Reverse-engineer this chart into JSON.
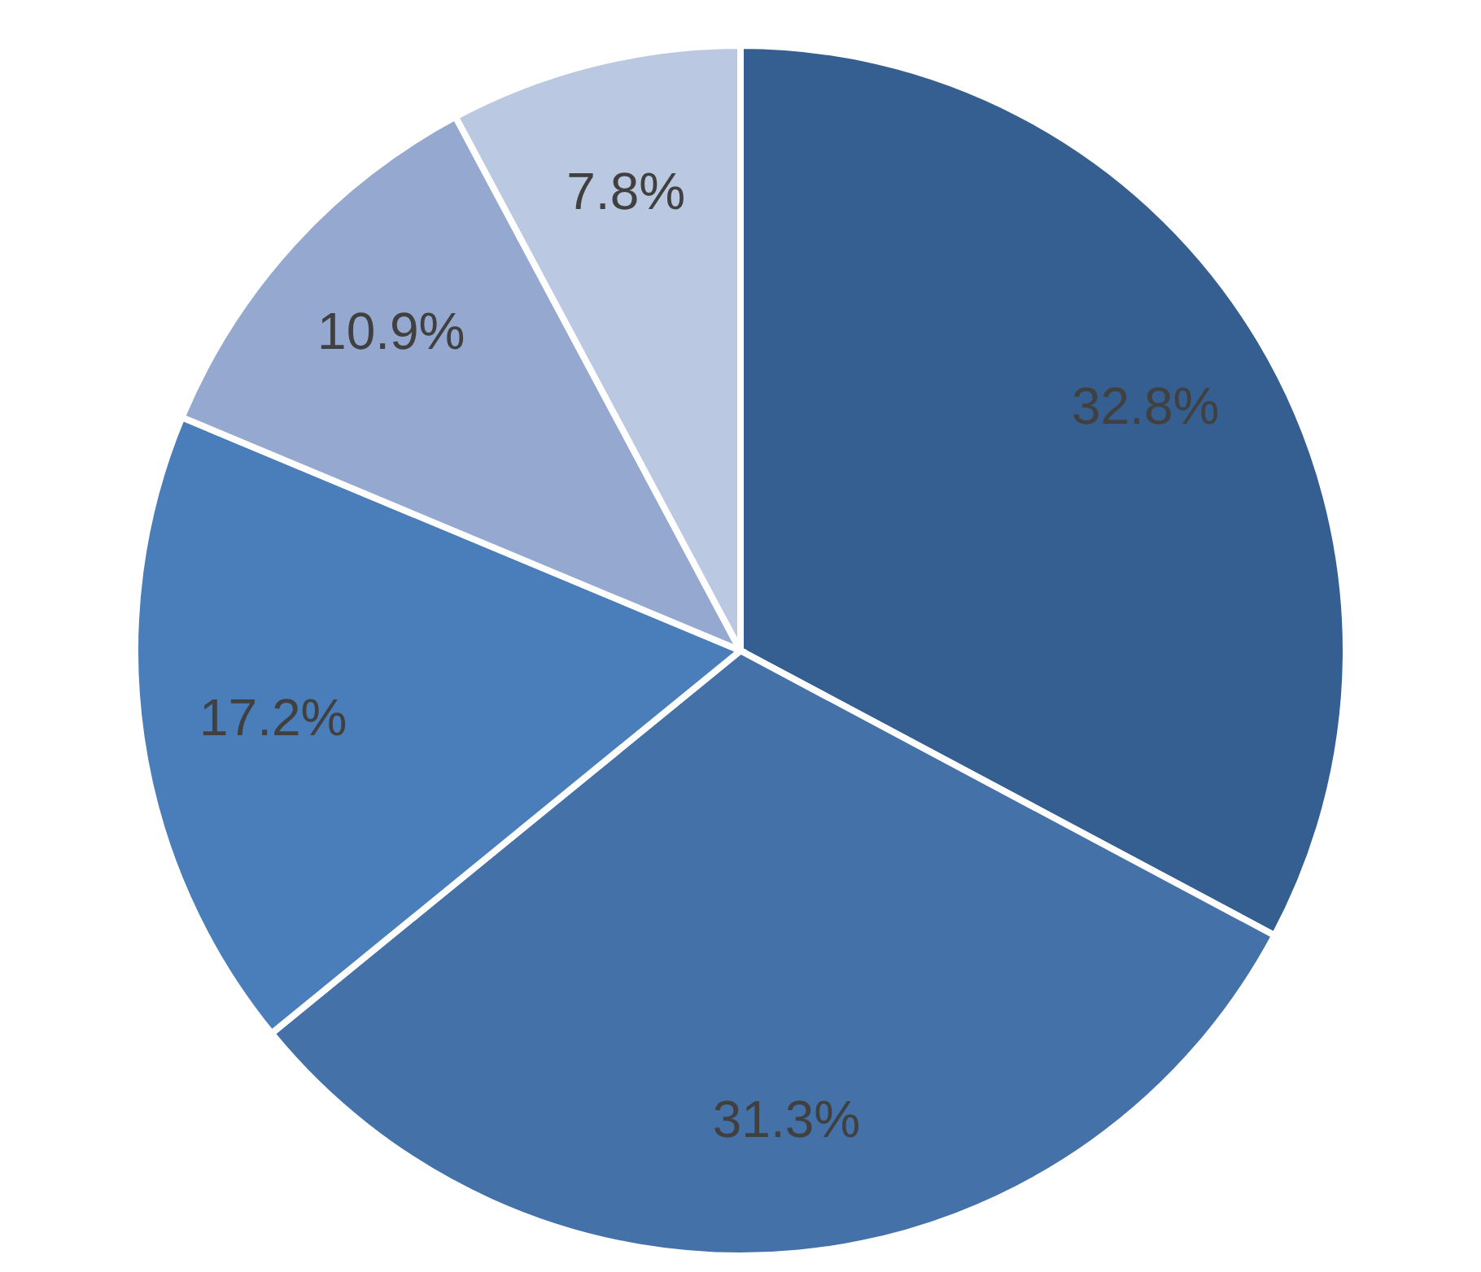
{
  "chart_data": {
    "type": "pie",
    "categories": [
      null,
      null,
      null,
      null,
      null
    ],
    "values": [
      32.8,
      31.3,
      17.2,
      10.9,
      7.8
    ],
    "colors": [
      "#355f91",
      "#4472a8",
      "#4a7ebb",
      "#95a9d0",
      "#bac8e1"
    ],
    "value_labels": [
      "32.8%",
      "31.3%",
      "17.2%",
      "10.9%",
      "7.8%"
    ]
  }
}
